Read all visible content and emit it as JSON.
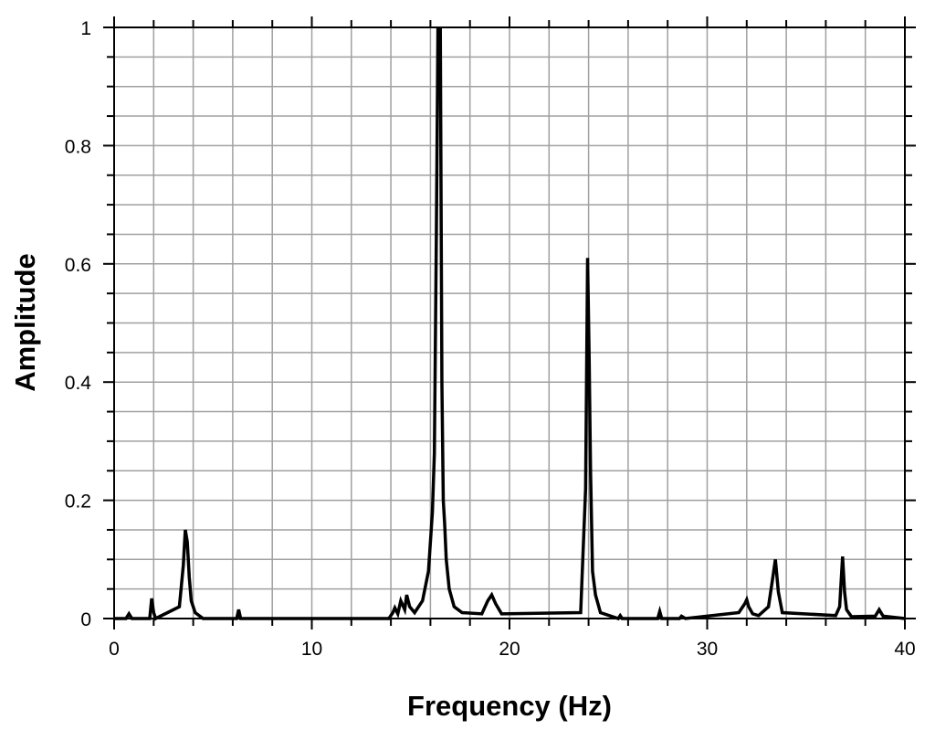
{
  "chart_data": {
    "type": "line",
    "title": "",
    "xlabel": "Frequency (Hz)",
    "ylabel": "Amplitude",
    "xlim": [
      0,
      40
    ],
    "ylim": [
      0,
      1
    ],
    "x_ticks": [
      0,
      10,
      20,
      30,
      40
    ],
    "x_tick_labels": [
      "0",
      "10",
      "20",
      "30",
      "40"
    ],
    "y_ticks": [
      0,
      0.2,
      0.4,
      0.6,
      0.8,
      1
    ],
    "y_tick_labels": [
      "0",
      "0.2",
      "0.4",
      "0.6",
      "0.8",
      "1"
    ],
    "grid": true,
    "line_color": "#000000",
    "grid_color": "#a0a0a0",
    "series": [
      {
        "x": [
          0,
          0.6,
          0.75,
          0.9,
          1.8,
          1.9,
          2.0,
          2.1,
          3.3,
          3.5,
          3.6,
          3.7,
          3.8,
          3.9,
          4.1,
          4.5,
          6.2,
          6.3,
          6.4,
          13.9,
          14.1,
          14.2,
          14.35,
          14.5,
          14.7,
          14.8,
          14.95,
          15.2,
          15.6,
          15.9,
          16.1,
          16.2,
          16.3,
          16.38,
          16.45,
          16.5,
          16.58,
          16.65,
          16.72,
          16.8,
          16.95,
          17.2,
          17.6,
          18.6,
          18.9,
          19.1,
          19.3,
          19.6,
          23.6,
          23.85,
          23.95,
          24.03,
          24.1,
          24.2,
          24.35,
          24.6,
          25.5,
          25.6,
          25.7,
          27.5,
          27.6,
          27.7,
          28.6,
          28.7,
          28.9,
          31.6,
          31.9,
          32.0,
          32.1,
          32.3,
          32.6,
          33.1,
          33.3,
          33.45,
          33.6,
          33.8,
          36.5,
          36.7,
          36.85,
          36.95,
          37.05,
          37.3,
          38.5,
          38.7,
          38.9,
          40
        ],
        "y": [
          0,
          0,
          0.008,
          0,
          0,
          0.034,
          0.01,
          0,
          0.02,
          0.09,
          0.15,
          0.13,
          0.07,
          0.03,
          0.01,
          0,
          0,
          0.015,
          0,
          0,
          0.01,
          0.018,
          0.008,
          0.03,
          0.015,
          0.04,
          0.02,
          0.01,
          0.03,
          0.08,
          0.18,
          0.28,
          0.65,
          1.0,
          0.95,
          1.0,
          0.4,
          0.2,
          0.16,
          0.1,
          0.05,
          0.02,
          0.01,
          0.008,
          0.03,
          0.04,
          0.025,
          0.008,
          0.01,
          0.22,
          0.61,
          0.44,
          0.25,
          0.08,
          0.04,
          0.01,
          0,
          0.005,
          0,
          0,
          0.012,
          0,
          0,
          0.004,
          0,
          0.01,
          0.025,
          0.032,
          0.02,
          0.008,
          0.005,
          0.02,
          0.065,
          0.1,
          0.045,
          0.01,
          0.005,
          0.02,
          0.105,
          0.045,
          0.015,
          0.003,
          0.004,
          0.015,
          0.004,
          0
        ]
      }
    ]
  }
}
